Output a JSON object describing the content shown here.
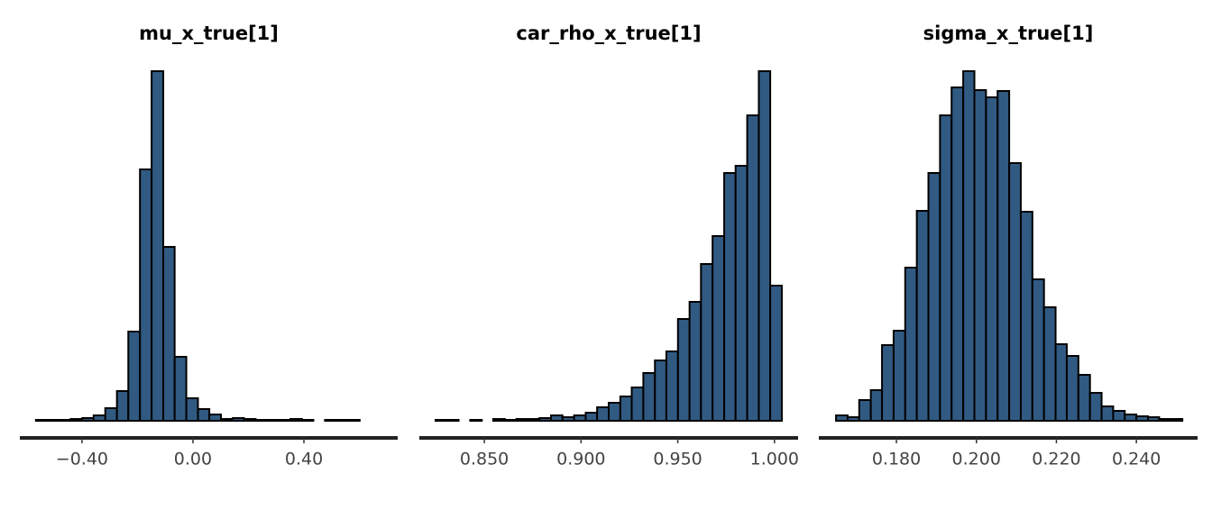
{
  "chart_data": [
    {
      "type": "histogram",
      "title": "mu_x_true[1]",
      "color": "#315a82",
      "bins": [
        -0.566,
        -0.524,
        -0.483,
        -0.441,
        -0.399,
        -0.358,
        -0.316,
        -0.274,
        -0.233,
        -0.191,
        -0.149,
        -0.107,
        -0.066,
        -0.024,
        0.018,
        0.059,
        0.101,
        0.143,
        0.184,
        0.226,
        0.268,
        0.309,
        0.351,
        0.393,
        0.434,
        0.476,
        0.518,
        0.559,
        0.601,
        0.643,
        0.684
      ],
      "values": [
        1,
        1,
        1,
        2,
        3,
        6,
        14,
        33,
        99,
        279,
        388,
        193,
        71,
        25,
        13,
        7,
        2,
        3,
        2,
        1,
        1,
        1,
        2,
        1,
        0,
        1,
        1,
        1,
        0,
        0
      ],
      "xlim": [
        -0.624,
        0.738
      ],
      "xticks": [
        {
          "value": -0.4,
          "label": "−0.40"
        },
        {
          "value": 0,
          "label": "0.00"
        },
        {
          "value": 0.4,
          "label": "0.40"
        }
      ]
    },
    {
      "type": "histogram",
      "title": "car_rho_x_true[1]",
      "color": "#315a82",
      "bins": [
        0.8248,
        0.8308,
        0.8367,
        0.8427,
        0.8487,
        0.8546,
        0.8606,
        0.8666,
        0.8725,
        0.8785,
        0.8845,
        0.8904,
        0.8964,
        0.9024,
        0.9083,
        0.9143,
        0.9203,
        0.9262,
        0.9322,
        0.9382,
        0.9441,
        0.9501,
        0.9561,
        0.962,
        0.968,
        0.974,
        0.9799,
        0.9859,
        0.9919,
        0.9978,
        1.0038
      ],
      "values": [
        1,
        1,
        0,
        1,
        0,
        2,
        1,
        2,
        2,
        3,
        6,
        4,
        6,
        9,
        15,
        20,
        27,
        37,
        53,
        67,
        77,
        113,
        132,
        174,
        205,
        275,
        283,
        339,
        388,
        150
      ],
      "xlim": [
        0.8164,
        1.0122
      ],
      "xticks": [
        {
          "value": 0.85,
          "label": "0.850"
        },
        {
          "value": 0.9,
          "label": "0.900"
        },
        {
          "value": 0.95,
          "label": "0.950"
        },
        {
          "value": 1,
          "label": "1.000"
        }
      ]
    },
    {
      "type": "histogram",
      "title": "sigma_x_true[1]",
      "color": "#315a82",
      "bins": [
        0.1649,
        0.1678,
        0.1707,
        0.1736,
        0.1764,
        0.1793,
        0.1822,
        0.1851,
        0.188,
        0.1909,
        0.1938,
        0.1967,
        0.1995,
        0.2024,
        0.2053,
        0.2082,
        0.2111,
        0.214,
        0.2169,
        0.2198,
        0.2226,
        0.2255,
        0.2284,
        0.2313,
        0.2342,
        0.2371,
        0.24,
        0.2429,
        0.2457,
        0.2486,
        0.2515
      ],
      "values": [
        6,
        4,
        23,
        34,
        84,
        100,
        170,
        233,
        275,
        339,
        370,
        388,
        367,
        359,
        366,
        286,
        232,
        157,
        126,
        85,
        72,
        51,
        31,
        16,
        11,
        7,
        5,
        4,
        2,
        2
      ],
      "xlim": [
        0.1606,
        0.2553
      ],
      "xticks": [
        {
          "value": 0.18,
          "label": "0.180"
        },
        {
          "value": 0.2,
          "label": "0.200"
        },
        {
          "value": 0.22,
          "label": "0.220"
        },
        {
          "value": 0.24,
          "label": "0.240"
        }
      ]
    }
  ]
}
